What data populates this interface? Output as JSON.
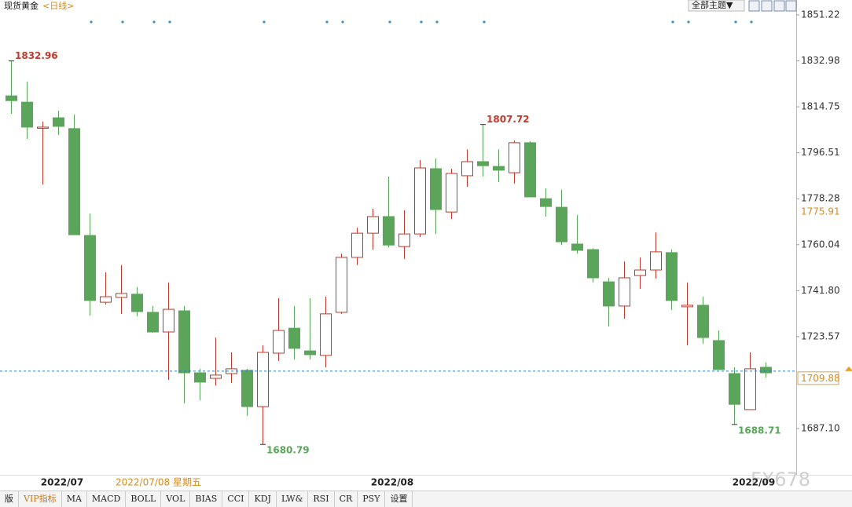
{
  "header": {
    "title": "现货黄金",
    "period": "<日线>",
    "theme_button": "全部主题▼"
  },
  "toolbar": [
    "版",
    "VIP指标",
    "MA",
    "MACD",
    "BOLL",
    "VOL",
    "BIAS",
    "CCI",
    "KDJ",
    "LW&",
    "RSI",
    "CR",
    "PSY",
    "设置"
  ],
  "watermark": "FX678",
  "chart_data": {
    "type": "candlestick",
    "categories": [
      null,
      null,
      null,
      "2022/07",
      null,
      null,
      null,
      null,
      null,
      null,
      null,
      null,
      null,
      null,
      null,
      null,
      null,
      null,
      null,
      null,
      null,
      null,
      null,
      null,
      "2022/08",
      null,
      null,
      null,
      null,
      null,
      null,
      null,
      null,
      null,
      null,
      null,
      null,
      null,
      null,
      null,
      null,
      null,
      null,
      null,
      null,
      null,
      null,
      "2022/09",
      null
    ],
    "open": [
      1819.1,
      1816.6,
      1806.4,
      1810.4,
      1806.1,
      1763.7,
      1737.2,
      1739.1,
      1740.4,
      1733.2,
      1725.4,
      1733.8,
      1709.2,
      1707.0,
      1708.9,
      1710.2,
      1695.8,
      1717.0,
      1726.9,
      1717.9,
      1716.1,
      1733.2,
      1755.0,
      1764.6,
      1771.2,
      1759.3,
      1764.3,
      1790.2,
      1773.0,
      1787.4,
      1793.0,
      1791.1,
      1788.6,
      1800.5,
      1778.3,
      1774.9,
      1760.3,
      1758.1,
      1745.3,
      1735.7,
      1747.8,
      1750.0,
      1756.9,
      1735.4,
      1736.0,
      1722.0,
      1708.9,
      1694.6,
      1711.4
    ],
    "high": [
      1832.96,
      1824.7,
      1808.9,
      1813.2,
      1811.7,
      1772.4,
      1749.1,
      1751.9,
      1743.2,
      1735.7,
      1745.0,
      1735.7,
      1710.8,
      1723.2,
      1717.3,
      1710.8,
      1720.1,
      1738.8,
      1735.7,
      1738.8,
      1739.4,
      1756.5,
      1766.8,
      1774.3,
      1787.1,
      1773.7,
      1793.6,
      1794.2,
      1790.2,
      1797.9,
      1807.72,
      1797.9,
      1801.4,
      1801.1,
      1782.4,
      1781.8,
      1771.8,
      1758.7,
      1746.9,
      1753.4,
      1755.0,
      1764.9,
      1758.1,
      1745.0,
      1739.4,
      1726.0,
      1711.4,
      1717.3,
      1713.3
    ],
    "low": [
      1812.0,
      1802.0,
      1783.9,
      1803.6,
      1764.0,
      1731.9,
      1736.3,
      1732.6,
      1731.6,
      1725.1,
      1706.4,
      1697.1,
      1698.3,
      1704.2,
      1705.2,
      1692.1,
      1680.79,
      1713.9,
      1714.5,
      1714.5,
      1711.4,
      1732.6,
      1751.9,
      1758.1,
      1759.0,
      1754.4,
      1763.1,
      1764.3,
      1770.2,
      1783.0,
      1787.1,
      1784.9,
      1784.3,
      1779.0,
      1771.2,
      1759.9,
      1756.5,
      1745.0,
      1727.6,
      1730.7,
      1742.5,
      1746.6,
      1734.1,
      1720.1,
      1720.7,
      1710.5,
      1688.71,
      1694.6,
      1707.3
    ],
    "close": [
      1817.2,
      1806.7,
      1806.7,
      1807.0,
      1764.0,
      1737.9,
      1739.4,
      1740.7,
      1733.5,
      1725.4,
      1734.4,
      1709.2,
      1705.5,
      1708.3,
      1710.8,
      1695.8,
      1717.3,
      1726.0,
      1718.9,
      1716.4,
      1732.6,
      1755.0,
      1764.6,
      1771.2,
      1759.9,
      1764.3,
      1790.5,
      1774.0,
      1788.3,
      1793.0,
      1791.4,
      1789.6,
      1800.5,
      1779.0,
      1775.2,
      1761.2,
      1757.8,
      1746.9,
      1735.7,
      1746.9,
      1750.0,
      1757.2,
      1737.9,
      1736.0,
      1723.2,
      1710.5,
      1696.7,
      1710.8,
      1709.2
    ],
    "up_color": "#c0392b",
    "down_color": "#5aa55a",
    "marked_high": [
      0,
      30
    ],
    "marked_low": [
      16,
      46
    ],
    "ylim": [
      1668.72,
      1857.14
    ],
    "yticks": [
      1851.22,
      1832.98,
      1814.75,
      1796.51,
      1778.28,
      1760.04,
      {
        "value": 1741.8,
        "label": "1741.80"
      },
      1723.57,
      {
        "value": 1687.1,
        "label": "1687.10"
      }
    ],
    "last_price": 1709.88,
    "marker_price": 1775.91,
    "cursor_label": "2022/07/08 星期五"
  }
}
